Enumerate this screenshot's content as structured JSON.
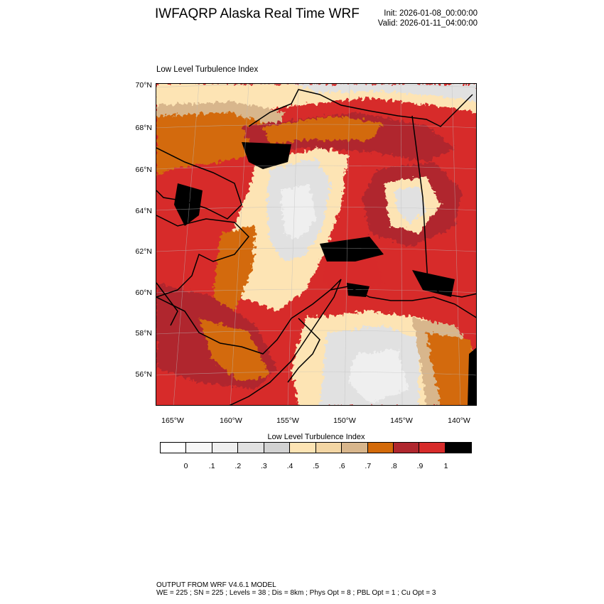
{
  "header": {
    "title": "IWFAQRP Alaska Real Time WRF",
    "init": "Init: 2026-01-08_00:00:00",
    "valid": "Valid: 2026-01-11_04:00:00"
  },
  "plot": {
    "label": "Low Level Turbulence Index",
    "lat_labels": [
      "70°N",
      "68°N",
      "66°N",
      "64°N",
      "62°N",
      "60°N",
      "58°N",
      "56°N"
    ],
    "lon_labels": [
      "165°W",
      "160°W",
      "155°W",
      "150°W",
      "145°W",
      "140°W"
    ]
  },
  "colorbar": {
    "title": "Low Level Turbulence Index",
    "colors": [
      "#ffffff",
      "#f7f7f7",
      "#efefef",
      "#e1e1e1",
      "#d2d2d2",
      "#fde4b4",
      "#f3d6a4",
      "#d8b68c",
      "#d36a0a",
      "#b0272e",
      "#d72b2a",
      "#000000"
    ],
    "tick_labels": [
      "0",
      ".1",
      ".2",
      ".3",
      ".4",
      ".5",
      ".6",
      ".7",
      ".8",
      ".9",
      "1"
    ]
  },
  "footer": {
    "line1": "OUTPUT FROM WRF V4.6.1 MODEL",
    "line2": "WE = 225 ; SN = 225 ; Levels = 38 ; Dis = 8km ; Phys Opt = 8 ; PBL Opt = 1 ; Cu Opt = 3"
  }
}
